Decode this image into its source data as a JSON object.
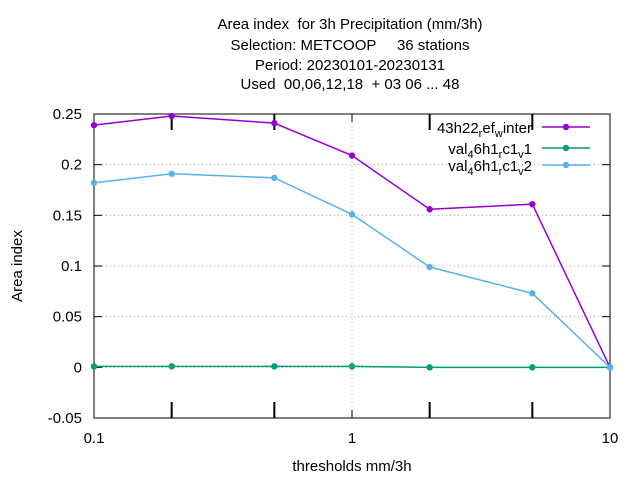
{
  "chart_data": {
    "type": "line",
    "title_lines": [
      "Area index  for 3h Precipitation (mm/3h)",
      "Selection: METCOOP     36 stations",
      "Period: 20230101-20230131",
      "Used  00,06,12,18  + 03 06 ... 48"
    ],
    "xlabel": "thresholds mm/3h",
    "ylabel": "Area index",
    "x_scale": "log",
    "xlim": [
      0.1,
      10
    ],
    "ylim": [
      -0.05,
      0.25
    ],
    "x_ticks": [
      {
        "value": 0.1,
        "label": "0.1"
      },
      {
        "value": 1,
        "label": "1"
      },
      {
        "value": 10,
        "label": "10"
      }
    ],
    "y_ticks": [
      {
        "value": -0.05,
        "label": "-0.05"
      },
      {
        "value": 0,
        "label": "0"
      },
      {
        "value": 0.05,
        "label": "0.05"
      },
      {
        "value": 0.1,
        "label": "0.1"
      },
      {
        "value": 0.15,
        "label": "0.15"
      },
      {
        "value": 0.2,
        "label": "0.2"
      },
      {
        "value": 0.25,
        "label": "0.25"
      }
    ],
    "grid": true,
    "legend_position": "top-right",
    "x": [
      0.1,
      0.2,
      0.5,
      1,
      2,
      5,
      10
    ],
    "series": [
      {
        "legend": [
          "43h22",
          "r",
          "ef",
          "w",
          "inter"
        ],
        "color": "#9400d3",
        "values": [
          0.239,
          0.248,
          0.241,
          0.209,
          0.156,
          0.161,
          0.0
        ]
      },
      {
        "legend": [
          "val",
          "4",
          "6h1",
          "r",
          "c1",
          "v",
          "1"
        ],
        "color": "#009e73",
        "values": [
          0.001,
          0.001,
          0.001,
          0.001,
          0.0,
          0.0,
          0.0
        ]
      },
      {
        "legend": [
          "val",
          "4",
          "6h1",
          "r",
          "c1",
          "v",
          "2"
        ],
        "color": "#56b4e9",
        "values": [
          0.182,
          0.191,
          0.187,
          0.151,
          0.099,
          0.073,
          0.0
        ]
      }
    ]
  }
}
